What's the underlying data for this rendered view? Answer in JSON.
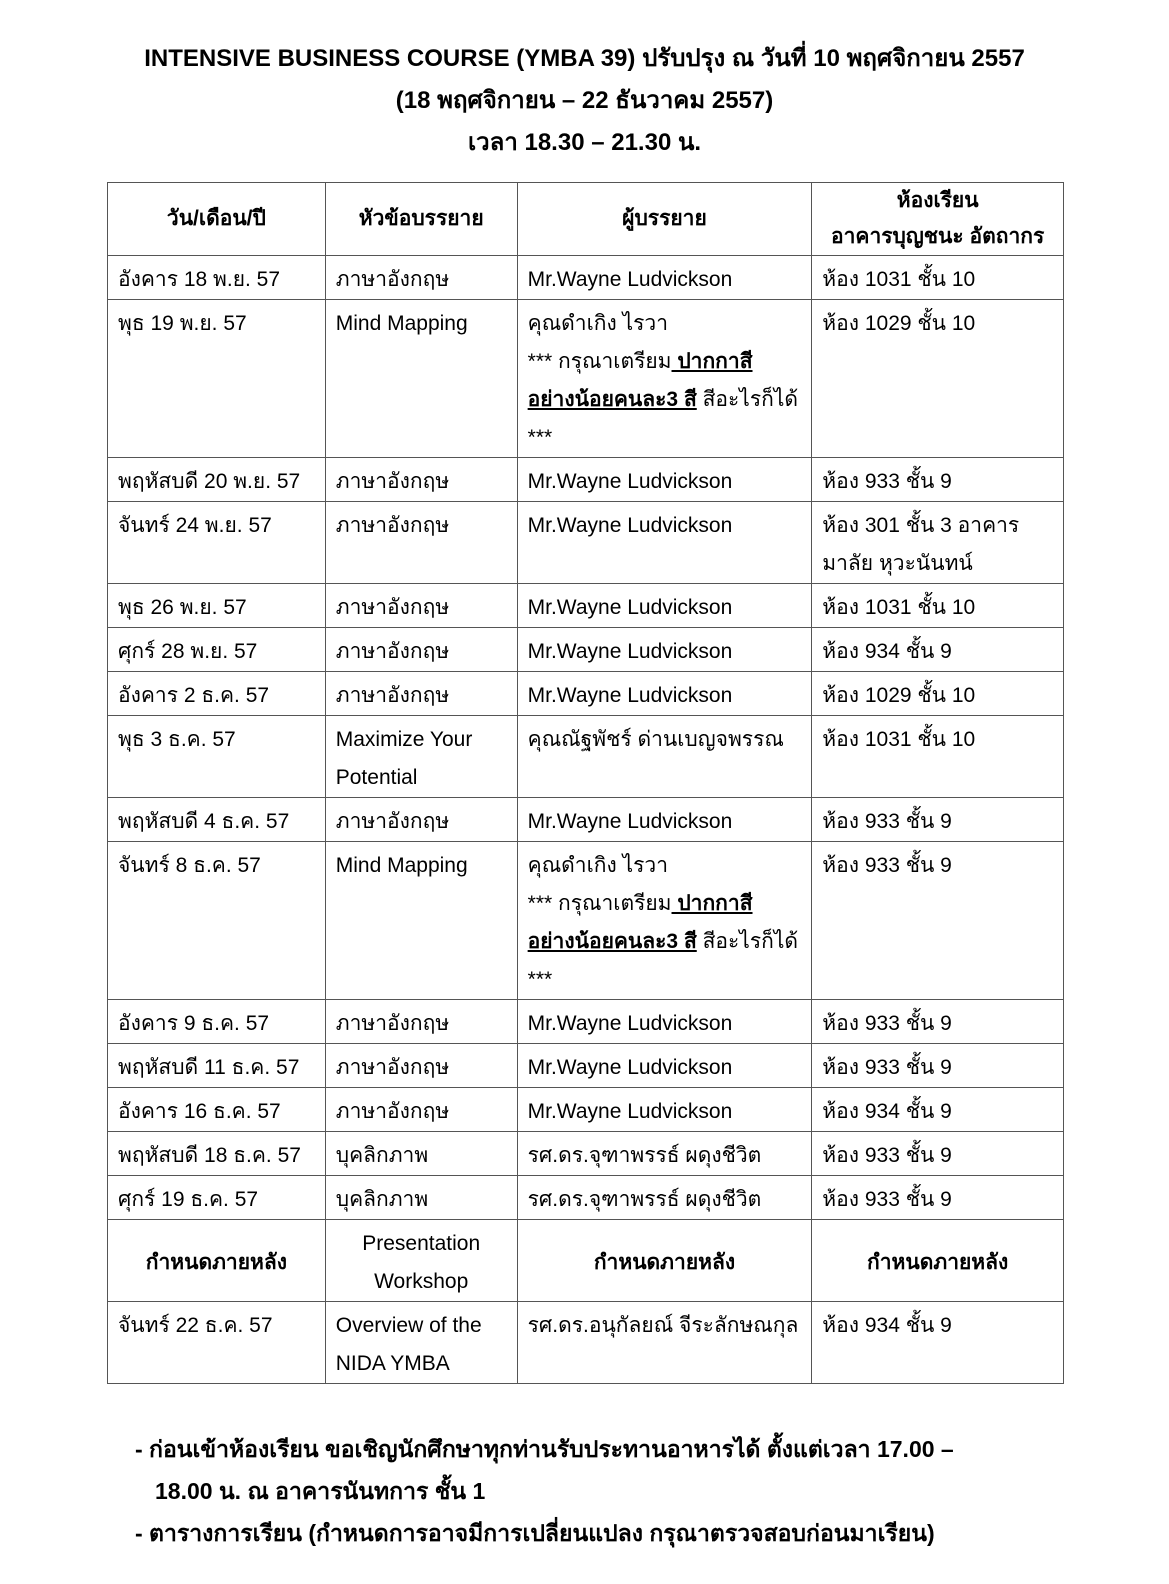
{
  "header": {
    "title": "INTENSIVE BUSINESS COURSE (YMBA 39) ปรับปรุง ณ วันที่ 10 พฤศจิกายน 2557",
    "period": "(18 พฤศจิกายน – 22 ธันวาคม 2557)",
    "time": "เวลา 18.30 – 21.30 น."
  },
  "table": {
    "columns": [
      "วัน/เดือน/ปี",
      "หัวข้อบรรยาย",
      "ผู้บรรยาย",
      "ห้องเรียน",
      "อาคารบุญชนะ อัตถากร"
    ],
    "rows": [
      {
        "date": "อังคาร 18 พ.ย. 57",
        "topic": "ภาษาอังกฤษ",
        "lecturer": "Mr.Wayne  Ludvickson",
        "room": "ห้อง 1031 ชั้น 10"
      },
      {
        "date": "พุธ 19 พ.ย. 57",
        "topic": "Mind Mapping",
        "lecturer": "คุณดำเกิง ไรวา",
        "note_pre": "*** กรุณาเตรียม",
        "note_bold": " ปากกาสี อย่างน้อยคนละ3 สี",
        "note_post": " สีอะไรก็ได้ ***",
        "room": "ห้อง 1029 ชั้น 10"
      },
      {
        "date": "พฤหัสบดี 20 พ.ย. 57",
        "topic": "ภาษาอังกฤษ",
        "lecturer": "Mr.Wayne  Ludvickson",
        "room": "ห้อง 933 ชั้น 9"
      },
      {
        "date": "จันทร์ 24 พ.ย. 57",
        "topic": "ภาษาอังกฤษ",
        "lecturer": "Mr.Wayne  Ludvickson",
        "room": "ห้อง 301 ชั้น 3 อาคารมาลัย หุวะนันทน์"
      },
      {
        "date": "พุธ 26 พ.ย. 57",
        "topic": "ภาษาอังกฤษ",
        "lecturer": "Mr.Wayne  Ludvickson",
        "room": "ห้อง 1031 ชั้น 10"
      },
      {
        "date": "ศุกร์ 28 พ.ย. 57",
        "topic": "ภาษาอังกฤษ",
        "lecturer": "Mr.Wayne  Ludvickson",
        "room": "ห้อง 934 ชั้น 9"
      },
      {
        "date": "อังคาร 2 ธ.ค. 57",
        "topic": "ภาษาอังกฤษ",
        "lecturer": "Mr.Wayne  Ludvickson",
        "room": "ห้อง 1029 ชั้น 10"
      },
      {
        "date": "พุธ 3 ธ.ค. 57",
        "topic": "Maximize Your Potential",
        "lecturer": "คุณณัฐพัชร์ ด่านเบญจพรรณ",
        "room": "ห้อง 1031 ชั้น 10"
      },
      {
        "date": "พฤหัสบดี 4 ธ.ค. 57",
        "topic": "ภาษาอังกฤษ",
        "lecturer": "Mr.Wayne  Ludvickson",
        "room": "ห้อง 933 ชั้น 9"
      },
      {
        "date": "จันทร์ 8 ธ.ค. 57",
        "topic": "Mind Mapping",
        "lecturer": "คุณดำเกิง ไรวา",
        "note_pre": "*** กรุณาเตรียม",
        "note_bold": " ปากกาสี อย่างน้อยคนละ3 สี",
        "note_post": " สีอะไรก็ได้ ***",
        "room": "ห้อง 933 ชั้น 9"
      },
      {
        "date": "อังคาร 9 ธ.ค. 57",
        "topic": "ภาษาอังกฤษ",
        "lecturer": "Mr.Wayne  Ludvickson",
        "room": "ห้อง 933 ชั้น 9"
      },
      {
        "date": "พฤหัสบดี 11 ธ.ค. 57",
        "topic": "ภาษาอังกฤษ",
        "lecturer": "Mr.Wayne  Ludvickson",
        "room": "ห้อง 933 ชั้น 9"
      },
      {
        "date": "อังคาร 16 ธ.ค. 57",
        "topic": "ภาษาอังกฤษ",
        "lecturer": "Mr.Wayne  Ludvickson",
        "room": "ห้อง 934 ชั้น 9"
      },
      {
        "date": "พฤหัสบดี 18 ธ.ค. 57",
        "topic": "บุคลิกภาพ",
        "lecturer": "รศ.ดร.จุฑาพรรธ์  ผดุงชีวิต",
        "room": "ห้อง 933 ชั้น 9"
      },
      {
        "date": "ศุกร์ 19 ธ.ค. 57",
        "topic": "บุคลิกภาพ",
        "lecturer": "รศ.ดร.จุฑาพรรธ์  ผดุงชีวิต",
        "room": "ห้อง 933 ชั้น 9"
      },
      {
        "date": "กำหนดภายหลัง",
        "topic": "Presentation Workshop",
        "lecturer": "กำหนดภายหลัง",
        "room": "กำหนดภายหลัง",
        "tbd": true
      },
      {
        "date": "จันทร์ 22 ธ.ค. 57",
        "topic": "Overview of the NIDA YMBA",
        "lecturer": "รศ.ดร.อนุกัลยณ์ จีระลักษณกุล",
        "room": "ห้อง 934 ชั้น 9"
      }
    ]
  },
  "notes": {
    "line1": "- ก่อนเข้าห้องเรียน ขอเชิญนักศึกษาทุกท่านรับประทานอาหารได้ ตั้งแต่เวลา 17.00 –",
    "line1b": "18.00 น. ณ อาคารนันทการ ชั้น 1",
    "line2": "- ตารางการเรียน (กำหนดการอาจมีการเปลี่ยนแปลง กรุณาตรวจสอบก่อนมาเรียน)"
  }
}
